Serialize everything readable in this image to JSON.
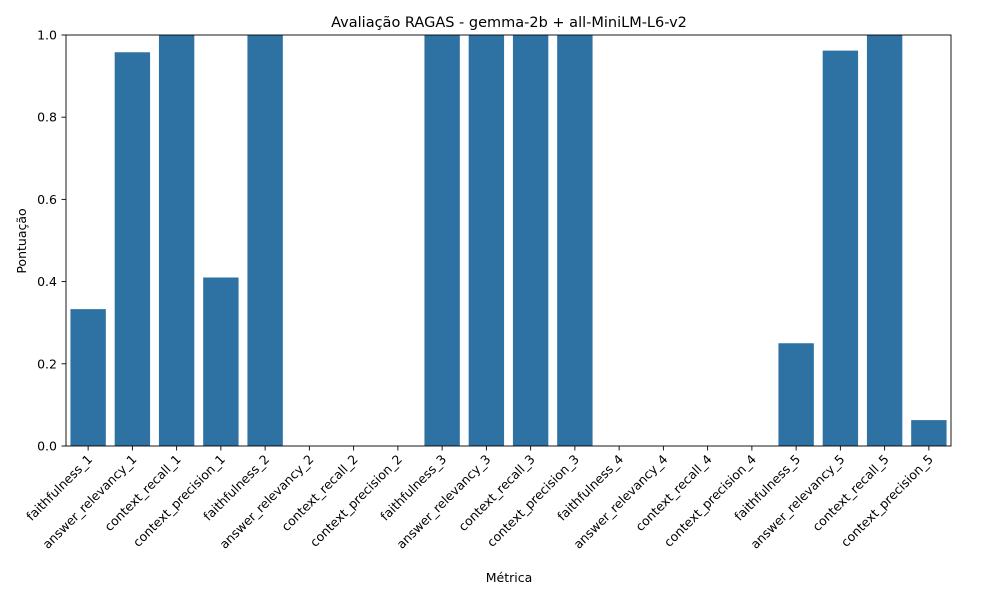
{
  "chart_data": {
    "type": "bar",
    "title": "Avaliação RAGAS - gemma-2b + all-MiniLM-L6-v2",
    "xlabel": "Métrica",
    "ylabel": "Pontuação",
    "ylim": [
      0,
      1.0
    ],
    "yticks": [
      "0.0",
      "0.2",
      "0.4",
      "0.6",
      "0.8",
      "1.0"
    ],
    "grid": false,
    "bar_color": "#2e72a4",
    "categories": [
      "faithfulness_1",
      "answer_relevancy_1",
      "context_recall_1",
      "context_precision_1",
      "faithfulness_2",
      "answer_relevancy_2",
      "context_recall_2",
      "context_precision_2",
      "faithfulness_3",
      "answer_relevancy_3",
      "context_recall_3",
      "context_precision_3",
      "faithfulness_4",
      "answer_relevancy_4",
      "context_recall_4",
      "context_precision_4",
      "faithfulness_5",
      "answer_relevancy_5",
      "context_recall_5",
      "context_precision_5"
    ],
    "values": [
      0.333,
      0.958,
      1.0,
      0.41,
      1.0,
      0.0,
      0.0,
      0.0,
      1.0,
      1.0,
      1.0,
      1.0,
      0.0,
      0.0,
      0.0,
      0.0,
      0.25,
      0.962,
      1.0,
      0.063
    ]
  }
}
